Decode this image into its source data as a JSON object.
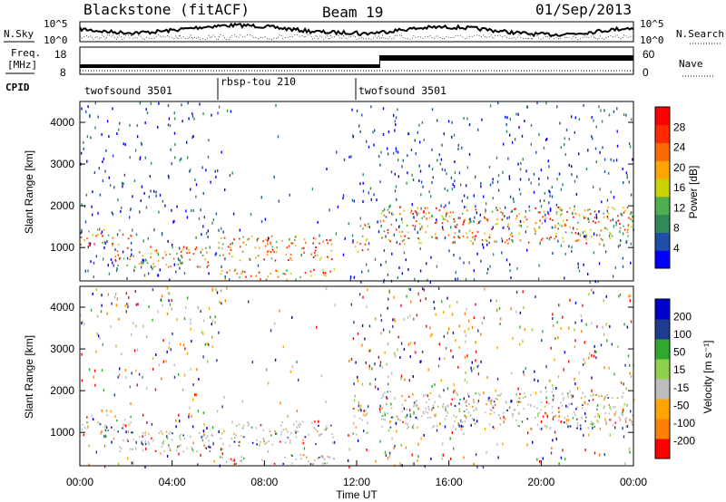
{
  "header": {
    "radar": "Blackstone (fitACF)",
    "beam": "Beam 19",
    "date": "01/Sep/2013"
  },
  "summary": {
    "left_top": "N.Sky",
    "right_top": "N.Search",
    "nsky_ticks": [
      "10^5",
      "10^0"
    ],
    "freq_label_1": "Freq.",
    "freq_label_2": "[MHz]",
    "freq_ticks": [
      "18",
      "8"
    ],
    "nave_label": "Nave",
    "nave_ticks": [
      "60",
      "0"
    ],
    "cpid_label": "CPID"
  },
  "cpid_segments": [
    {
      "name": "twofsound 3501",
      "start": 0.0,
      "end": 6.0
    },
    {
      "name": "rbsp-tou 210",
      "start": 6.0,
      "end": 12.0
    },
    {
      "name": "twofsound 3501",
      "start": 12.0,
      "end": 24.0
    }
  ],
  "colors": {
    "power": [
      "#0000ff",
      "#1e4fa8",
      "#2e8b57",
      "#4caf50",
      "#c8d400",
      "#ffa500",
      "#ff6a00",
      "#ff2a00",
      "#ff0000"
    ],
    "velocity": [
      "#ff0000",
      "#ff7f00",
      "#ffa500",
      "#bdbdbd",
      "#8fd14f",
      "#2fa82f",
      "#1e3c8f",
      "#0000cc"
    ]
  },
  "chart_data": [
    {
      "type": "heatmap",
      "quantity": "Power",
      "ylabel": "Slant Range [km]",
      "x_range_hours": [
        0,
        24
      ],
      "ylim_km": [
        200,
        4500
      ],
      "yticks": [
        "1000",
        "2000",
        "3000",
        "4000"
      ],
      "colorbar_label": "Power [dB]",
      "colorbar_ticks": [
        "4",
        "8",
        "12",
        "16",
        "20",
        "24",
        "28"
      ],
      "scatter_bands": [
        {
          "t0": 0.0,
          "t1": 2.2,
          "r0": 1050,
          "r1": 1450,
          "level": "mid-high"
        },
        {
          "t0": 1.5,
          "t1": 5.8,
          "r0": 550,
          "r1": 1050,
          "level": "high"
        },
        {
          "t0": 6.0,
          "t1": 11.0,
          "r0": 700,
          "r1": 1300,
          "level": "high"
        },
        {
          "t0": 6.0,
          "t1": 11.0,
          "r0": 250,
          "r1": 500,
          "level": "high"
        },
        {
          "t0": 11.8,
          "t1": 12.5,
          "r0": 900,
          "r1": 1600,
          "level": "mid-high"
        },
        {
          "t0": 13.0,
          "t1": 24.0,
          "r0": 1100,
          "r1": 2000,
          "level": "mid-high"
        }
      ]
    },
    {
      "type": "heatmap",
      "quantity": "Velocity",
      "ylabel": "Slant Range [km]",
      "x_range_hours": [
        0,
        24
      ],
      "ylim_km": [
        200,
        4500
      ],
      "yticks": [
        "1000",
        "2000",
        "3000",
        "4000"
      ],
      "xticks": [
        "00:00",
        "04:00",
        "08:00",
        "12:00",
        "16:00",
        "20:00",
        "00:00"
      ],
      "xlabel": "Time UT",
      "colorbar_label": "Velocity [m s⁻¹]",
      "colorbar_ticks": [
        "200",
        "100",
        "50",
        "15",
        "-15",
        "-50",
        "-100",
        "-200"
      ]
    }
  ]
}
